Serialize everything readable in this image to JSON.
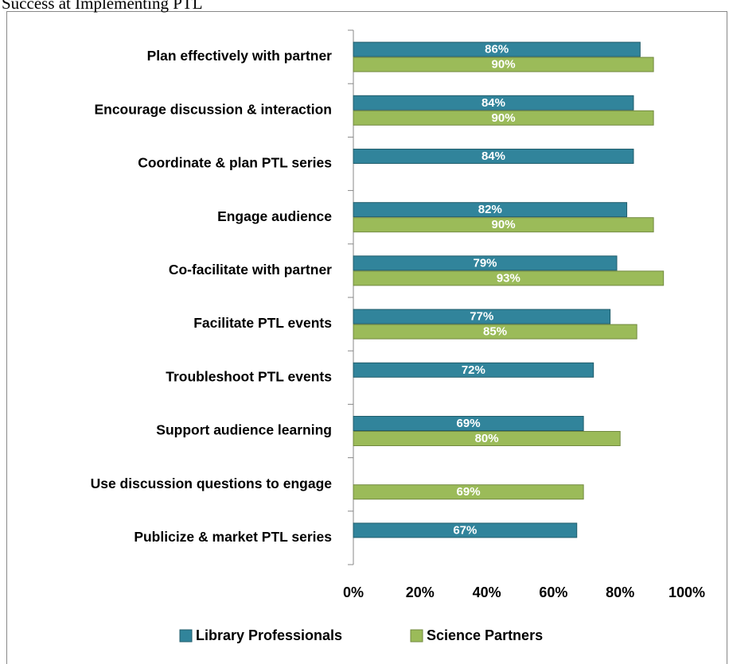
{
  "chart_data": {
    "type": "hbar",
    "title": "Success at Implementing PTL",
    "categories": [
      "Plan effectively with partner",
      "Encourage discussion & interaction",
      "Coordinate & plan PTL series",
      "Engage audience",
      "Co-facilitate with partner",
      "Facilitate PTL events",
      "Troubleshoot PTL events",
      "Support audience learning",
      "Use discussion questions to engage",
      "Publicize & market PTL series"
    ],
    "series": [
      {
        "name": "Library Professionals",
        "color": "#31849b",
        "values": [
          86,
          84,
          84,
          82,
          79,
          77,
          72,
          69,
          null,
          67
        ],
        "value_labels": [
          "86%",
          "84%",
          "84%",
          "82%",
          "79%",
          "77%",
          "72%",
          "69%",
          null,
          "67%"
        ]
      },
      {
        "name": "Science Partners",
        "color": "#9bbb59",
        "values": [
          90,
          90,
          null,
          90,
          93,
          85,
          null,
          80,
          69,
          null
        ],
        "value_labels": [
          "90%",
          "90%",
          null,
          "90%",
          "93%",
          "85%",
          null,
          "80%",
          "69%",
          null
        ]
      }
    ],
    "xlim": [
      0,
      100
    ],
    "xticks": [
      {
        "value": 0,
        "label": "0%"
      },
      {
        "value": 20,
        "label": "20%"
      },
      {
        "value": 40,
        "label": "40%"
      },
      {
        "value": 60,
        "label": "60%"
      },
      {
        "value": 80,
        "label": "80%"
      },
      {
        "value": 100,
        "label": "100%"
      }
    ],
    "legend": "bottom"
  }
}
